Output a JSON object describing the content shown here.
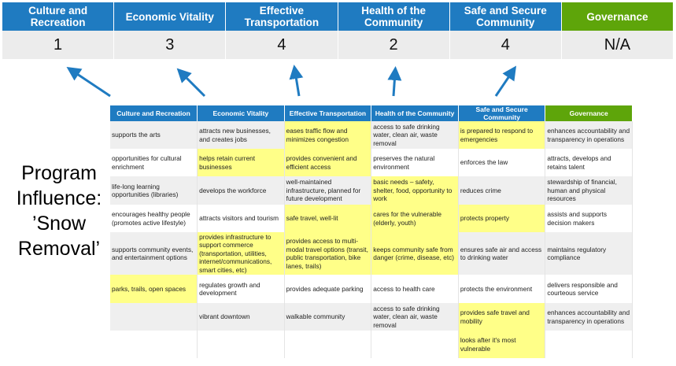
{
  "top_headers": [
    "Culture and Recreation",
    "Economic Vitality",
    "Effective Transportation",
    "Health of the Community",
    "Safe and Secure Community",
    "Governance"
  ],
  "top_values": [
    "1",
    "3",
    "4",
    "2",
    "4",
    "N/A"
  ],
  "program_label": "Program Influence: ’Snow Removal’",
  "colors": {
    "header_blue": "#1f7bc1",
    "governance_green": "#5ea50a",
    "highlight": "#ffff88",
    "arrow": "#1f7bc1"
  },
  "table": {
    "headers": [
      "Culture and Recreation",
      "Economic Vitality",
      "Effective Transportation",
      "Health of the Community",
      "Safe and Secure Community",
      "Governance"
    ],
    "rows": [
      {
        "cells": [
          "supports the arts",
          "attracts new businesses, and creates jobs",
          "eases traffic flow and minimizes congestion",
          "access to safe drinking water, clean air, waste removal",
          "is prepared to respond to emergencies",
          "enhances accountability and transparency in operations"
        ],
        "highlighted": [
          2,
          4
        ]
      },
      {
        "cells": [
          "opportunities for cultural enrichment",
          "helps retain current businesses",
          "provides convenient and efficient access",
          "preserves the natural environment",
          "enforces the law",
          "attracts, develops and retains talent"
        ],
        "highlighted": [
          1,
          2
        ]
      },
      {
        "cells": [
          "life-long learning opportunities (libraries)",
          "develops the workforce",
          "well-maintained infrastructure, planned for future development",
          "basic needs – safety, shelter, food, opportunity to work",
          "reduces crime",
          "stewardship of financial, human and physical resources"
        ],
        "highlighted": [
          3
        ]
      },
      {
        "cells": [
          "encourages healthy people (promotes active lifestyle)",
          "attracts visitors and tourism",
          "safe travel, well-lit",
          "cares for the vulnerable (elderly, youth)",
          "protects property",
          "assists and supports decision makers"
        ],
        "highlighted": [
          2,
          3,
          4
        ]
      },
      {
        "cells": [
          "supports community events, and entertainment options",
          "provides infrastructure to support commerce (transportation, utilities, internet/communications, smart cities, etc)",
          "provides access to multi-modal travel options (transit, public transportation, bike lanes, trails)",
          "keeps community safe from danger (crime, disease, etc)",
          "ensures safe air and access to drinking water",
          "maintains regulatory compliance"
        ],
        "highlighted": [
          1,
          2,
          3
        ]
      },
      {
        "cells": [
          "parks, trails, open spaces",
          "regulates growth and development",
          "provides adequate parking",
          "access to health care",
          "protects the environment",
          "delivers responsible and courteous service"
        ],
        "highlighted": [
          0
        ]
      },
      {
        "cells": [
          "",
          "vibrant downtown",
          "walkable community",
          "access to safe drinking water, clean air, waste removal",
          "provides safe travel and mobility",
          "enhances accountability and transparency in operations"
        ],
        "highlighted": [
          4
        ]
      },
      {
        "cells": [
          "",
          "",
          "",
          "",
          "looks after it's most vulnerable",
          ""
        ],
        "highlighted": [
          4
        ]
      }
    ]
  }
}
